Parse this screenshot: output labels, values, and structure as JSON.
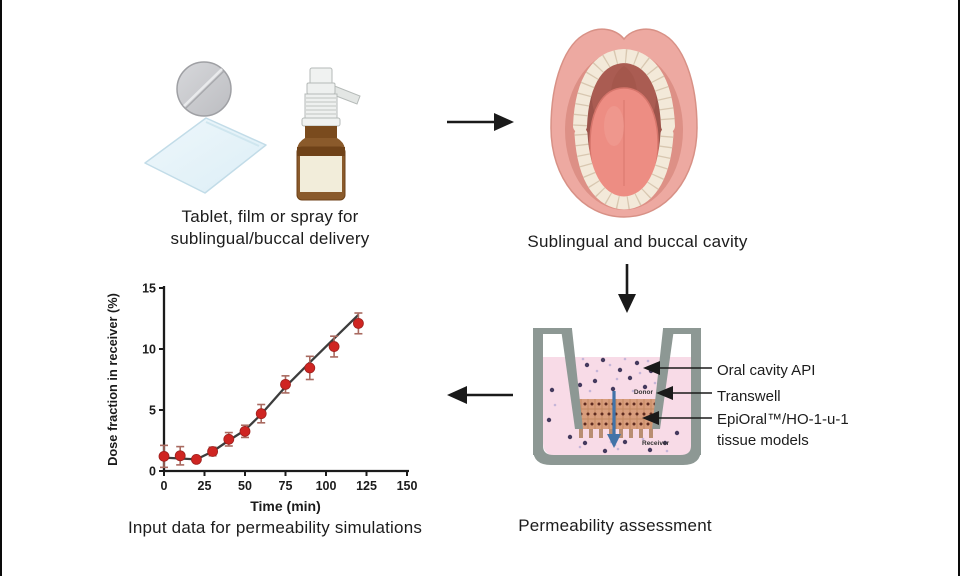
{
  "captions": {
    "dosage_line1": "Tablet, film or spray for",
    "dosage_line2": "sublingual/buccal delivery",
    "mouth": "Sublingual and buccal cavity",
    "transwell": "Permeability assessment",
    "chart": "Input data for permeability simulations"
  },
  "transwell_labels": {
    "donor": "Donor",
    "receiver": "Receiver",
    "api": "Oral cavity API",
    "insert": "Transwell",
    "tissue_line1": "EpiOral™/HO-1-u-1",
    "tissue_line2": "tissue models"
  },
  "icons": {
    "tablet": "tablet-icon",
    "film": "film-icon",
    "spray_bottle": "spray-bottle-icon",
    "mouth": "open-mouth-icon",
    "transwell": "transwell-assay-icon",
    "flow_arrows": [
      "arrow-right-icon",
      "arrow-down-icon",
      "arrow-left-icon"
    ]
  },
  "colors": {
    "flow_arrow": "#1a1a1a",
    "liquid_pink": "#f8dbe7",
    "well_gray": "#8d9894",
    "tissue_tan": "#d89d7c",
    "api_dot_dark": "#453a5e",
    "api_dot_light": "#c5b5d8",
    "flux_arrow_blue": "#4273a8"
  },
  "chart_data": {
    "type": "scatter",
    "title": "",
    "xlabel": "Time (min)",
    "ylabel": "Dose fraction in receiver (%)",
    "xlim": [
      0,
      150
    ],
    "ylim": [
      0,
      15
    ],
    "x_ticks": [
      0,
      25,
      50,
      75,
      100,
      125,
      150
    ],
    "y_ticks": [
      0,
      5,
      10,
      15
    ],
    "grid": false,
    "legend": "none",
    "points": [
      {
        "x": 0,
        "y": 1.2,
        "err": 0.9
      },
      {
        "x": 10,
        "y": 1.25,
        "err": 0.75
      },
      {
        "x": 20,
        "y": 0.95,
        "err": 0.2
      },
      {
        "x": 30,
        "y": 1.6,
        "err": 0.35
      },
      {
        "x": 40,
        "y": 2.6,
        "err": 0.55
      },
      {
        "x": 50,
        "y": 3.25,
        "err": 0.5
      },
      {
        "x": 60,
        "y": 4.7,
        "err": 0.75
      },
      {
        "x": 75,
        "y": 7.1,
        "err": 0.7
      },
      {
        "x": 90,
        "y": 8.45,
        "err": 0.95
      },
      {
        "x": 105,
        "y": 10.2,
        "err": 0.85
      },
      {
        "x": 120,
        "y": 12.1,
        "err": 0.85
      }
    ],
    "fit_line": [
      [
        0,
        1.1
      ],
      [
        20,
        0.95
      ],
      [
        30,
        1.6
      ],
      [
        40,
        2.5
      ],
      [
        50,
        3.35
      ],
      [
        60,
        4.65
      ],
      [
        75,
        6.9
      ],
      [
        90,
        8.9
      ],
      [
        105,
        10.85
      ],
      [
        120,
        12.8
      ]
    ],
    "colors": {
      "point": "#cf2522",
      "point_edge": "#9e211e",
      "error_bar": "#a96a60",
      "line": "#3d3d3d",
      "axis": "#1b1b1b",
      "tick_text": "#1b1b1b"
    }
  }
}
